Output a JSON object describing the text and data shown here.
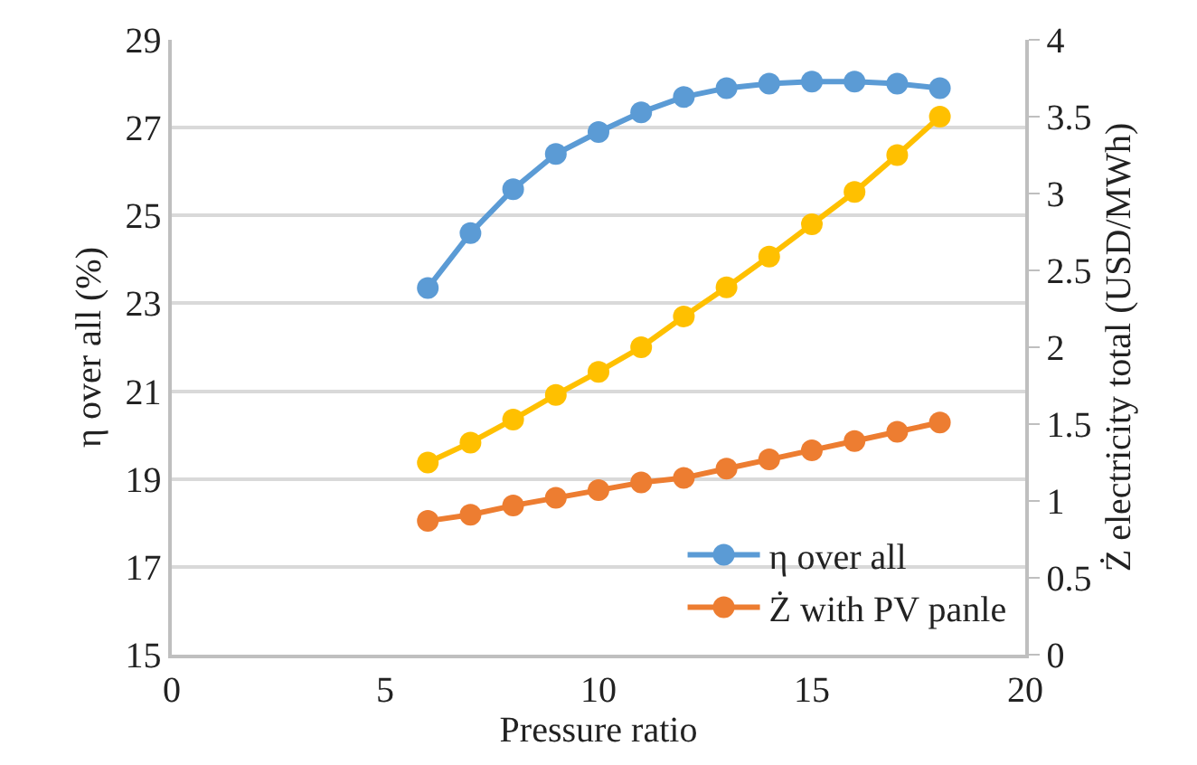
{
  "chart_data": {
    "type": "line",
    "xlabel": "Pressure ratio",
    "ylabel": "η over all (%)",
    "y2label": "Ż electricity total (USD/MWh)",
    "x": [
      6,
      7,
      8,
      9,
      10,
      11,
      12,
      13,
      14,
      15,
      16,
      17,
      18
    ],
    "series": [
      {
        "name": "η over all",
        "color": "#5b9bd5",
        "values": [
          23.35,
          24.6,
          25.6,
          26.4,
          26.9,
          27.35,
          27.7,
          27.9,
          28.0,
          28.05,
          28.05,
          28.0,
          27.9
        ]
      },
      {
        "name": "Ż with PV panle",
        "color": "#ed7d31",
        "axis": "y2",
        "values": [
          0.87,
          0.91,
          0.97,
          1.02,
          1.07,
          1.12,
          1.15,
          1.21,
          1.27,
          1.33,
          1.39,
          1.45,
          1.51
        ]
      },
      {
        "color": "#ffc000",
        "axis": "y2",
        "values": [
          1.25,
          1.38,
          1.53,
          1.69,
          1.84,
          2.0,
          2.2,
          2.39,
          2.59,
          2.8,
          3.01,
          3.25,
          3.5
        ]
      }
    ],
    "xlim": [
      0,
      20
    ],
    "xticks": [
      0,
      5,
      10,
      15,
      20
    ],
    "ylim": [
      15,
      29
    ],
    "yticks": [
      15,
      17,
      19,
      21,
      23,
      25,
      27,
      29
    ],
    "y2lim": [
      0,
      4
    ],
    "y2ticks": [
      0,
      0.5,
      1,
      1.5,
      2,
      2.5,
      3,
      3.5,
      4
    ],
    "grid": "y",
    "legend": "bottom right",
    "marker": "circle",
    "line_style": "solid"
  }
}
